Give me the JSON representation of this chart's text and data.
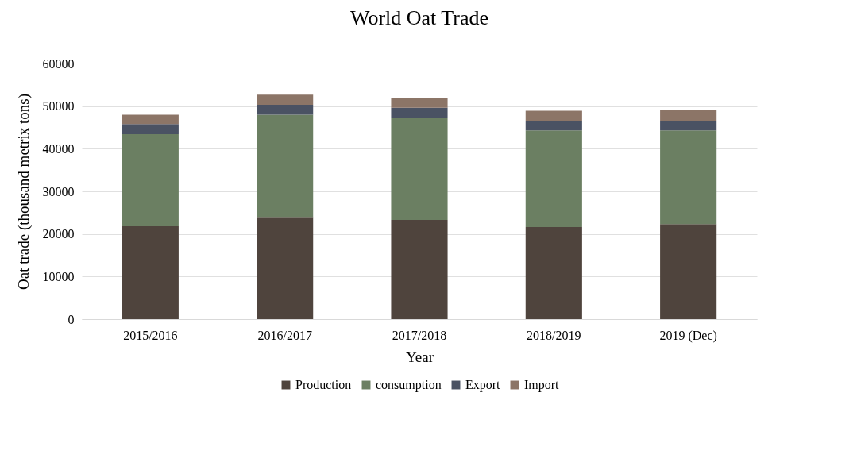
{
  "chart_data": {
    "type": "bar",
    "title": "World Oat Trade",
    "xlabel": "Year",
    "ylabel": "Oat trade (thousand metrix tons)",
    "categories": [
      "2015/2016",
      "2016/2017",
      "2017/2018",
      "2018/2019",
      "2019 (Dec)"
    ],
    "stacked": true,
    "series": [
      {
        "name": "Production",
        "color": "#4f443d",
        "values": [
          21800,
          24000,
          23300,
          21600,
          22300
        ]
      },
      {
        "name": "consumption",
        "color": "#6b7f62",
        "values": [
          21600,
          24000,
          24000,
          22700,
          22000
        ]
      },
      {
        "name": "Export",
        "color": "#4a5263",
        "values": [
          2400,
          2300,
          2300,
          2300,
          2300
        ]
      },
      {
        "name": "Import",
        "color": "#8c7567",
        "values": [
          2200,
          2400,
          2400,
          2300,
          2400
        ]
      }
    ],
    "ylim": [
      0,
      60000
    ],
    "yticks": [
      0,
      10000,
      20000,
      30000,
      40000,
      50000,
      60000
    ],
    "grid": "y",
    "legend": "bottom"
  }
}
